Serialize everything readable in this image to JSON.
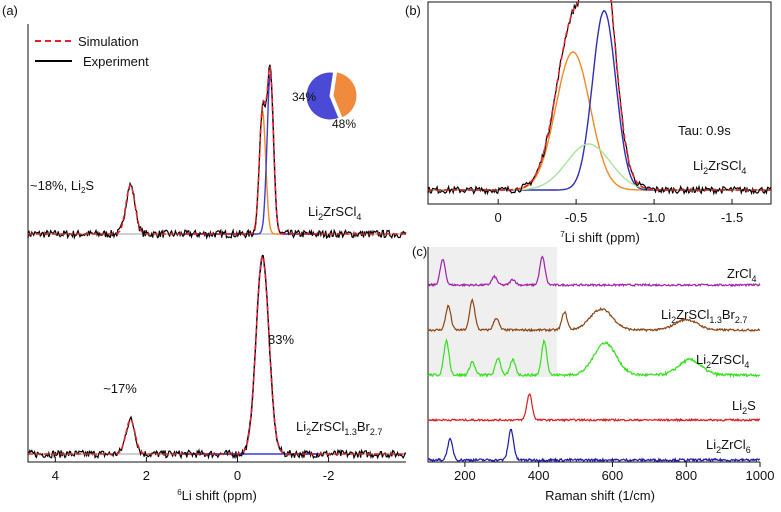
{
  "chart_data": [
    {
      "id": "a",
      "type": "line",
      "panel_label": "(a)",
      "xlabel_main": "Li shift (ppm)",
      "xlabel_sup": "6",
      "xlim": [
        4.6,
        -3.7
      ],
      "xticks": [
        4,
        2,
        0,
        -2
      ],
      "xtick_labels": [
        "4",
        "2",
        "0",
        "-2"
      ],
      "legend": [
        {
          "label": "Simulation",
          "color": "#e8222b",
          "dash": true
        },
        {
          "label": "Experiment",
          "color": "#000000",
          "dash": false
        }
      ],
      "series_colors": {
        "simulation": "#e8222b",
        "experiment": "#000000",
        "fit_blue": "#3b3bd8",
        "fit_orange": "#f08a24",
        "fit_green": "#8fd47a"
      },
      "samples": [
        {
          "name_parts": [
            [
              "Li",
              ""
            ],
            [
              "2",
              "sub"
            ],
            [
              "ZrSCl",
              ""
            ],
            [
              "4",
              "sub"
            ]
          ],
          "peak_annotation": "~18%, Li",
          "peak_annotation_sub": "2",
          "peak_annotation_tail": "S",
          "components": [
            {
              "name": "Li2S",
              "center_ppm": 2.35,
              "height": 0.22,
              "color": "#3b3bd8"
            },
            {
              "name": "site 1",
              "center_ppm": -0.55,
              "height": 0.55,
              "color": "#f08a24"
            },
            {
              "name": "site 2",
              "center_ppm": -0.72,
              "height": 0.72,
              "color": "#3b3bd8"
            }
          ],
          "pie": {
            "slices": [
              {
                "label": "34%",
                "value": 34,
                "color": "#f08a3c"
              },
              {
                "label": "48%",
                "value": 48,
                "color": "#4a4ad6"
              }
            ]
          }
        },
        {
          "name_parts": [
            [
              "Li",
              ""
            ],
            [
              "2",
              "sub"
            ],
            [
              "ZrSCl",
              ""
            ],
            [
              "1.3",
              "sub"
            ],
            [
              "Br",
              ""
            ],
            [
              "2.7",
              "sub"
            ]
          ],
          "peak_annotation": "~17%",
          "main_annotation": "83%",
          "components": [
            {
              "name": "Li2S",
              "center_ppm": 2.35,
              "height": 0.16,
              "color": "#3b3bd8"
            },
            {
              "name": "main",
              "center_ppm": -0.55,
              "height": 0.92,
              "color": "#3b3bd8"
            }
          ]
        }
      ]
    },
    {
      "id": "b",
      "type": "line",
      "panel_label": "(b)",
      "xlabel_main": "Li shift (ppm)",
      "xlabel_sup": "7",
      "xlim": [
        0.45,
        -1.75
      ],
      "xticks": [
        0,
        -0.5,
        -1.0,
        -1.5
      ],
      "xtick_labels": [
        "0",
        "-0.5",
        "-1.0",
        "-1.5"
      ],
      "annotation": "Tau: 0.9s",
      "sample_parts": [
        [
          "Li",
          ""
        ],
        [
          "2",
          "sub"
        ],
        [
          "ZrSCl",
          ""
        ],
        [
          "4",
          "sub"
        ]
      ],
      "components": [
        {
          "name": "orange",
          "center_ppm": -0.48,
          "height": 0.6,
          "width": 0.11,
          "color": "#f08a24"
        },
        {
          "name": "blue",
          "center_ppm": -0.68,
          "height": 0.78,
          "width": 0.075,
          "color": "#2e2eb8"
        },
        {
          "name": "green",
          "center_ppm": -0.58,
          "height": 0.2,
          "width": 0.14,
          "color": "#a8e49a"
        }
      ]
    },
    {
      "id": "c",
      "type": "line",
      "panel_label": "(c)",
      "xlabel": "Raman shift (1/cm)",
      "xlim": [
        100,
        1000
      ],
      "xticks": [
        200,
        400,
        600,
        800,
        1000
      ],
      "xtick_labels": [
        "200",
        "400",
        "600",
        "800",
        "1000"
      ],
      "shaded_region": [
        100,
        450
      ],
      "series": [
        {
          "name_parts": [
            [
              "ZrCl",
              ""
            ],
            [
              "4",
              "sub"
            ]
          ],
          "color": "#a020a8",
          "peaks": [
            [
              140,
              0.9
            ],
            [
              280,
              0.3
            ],
            [
              330,
              0.2
            ],
            [
              410,
              1.0
            ]
          ]
        },
        {
          "name_parts": [
            [
              "Li",
              ""
            ],
            [
              "2",
              "sub"
            ],
            [
              "ZrSCl",
              ""
            ],
            [
              "1.3",
              "sub"
            ],
            [
              "Br",
              ""
            ],
            [
              "2.7",
              "sub"
            ]
          ],
          "color": "#8b4513",
          "peaks": [
            [
              155,
              0.8
            ],
            [
              220,
              1.0
            ],
            [
              285,
              0.4
            ],
            [
              470,
              0.6
            ],
            [
              570,
              0.7
            ],
            [
              800,
              0.35
            ]
          ]
        },
        {
          "name_parts": [
            [
              "Li",
              ""
            ],
            [
              "2",
              "sub"
            ],
            [
              "ZrSCl",
              ""
            ],
            [
              "4",
              "sub"
            ]
          ],
          "color": "#33e01a",
          "peaks": [
            [
              150,
              0.9
            ],
            [
              220,
              0.35
            ],
            [
              290,
              0.45
            ],
            [
              330,
              0.4
            ],
            [
              415,
              0.9
            ],
            [
              580,
              0.85
            ],
            [
              810,
              0.4
            ]
          ]
        },
        {
          "name_parts": [
            [
              "Li",
              ""
            ],
            [
              "2",
              "sub"
            ],
            [
              "S",
              ""
            ]
          ],
          "color": "#d81a1a",
          "peaks": [
            [
              375,
              1.0
            ]
          ]
        },
        {
          "name_parts": [
            [
              "Li",
              ""
            ],
            [
              "2",
              "sub"
            ],
            [
              "ZrCl",
              ""
            ],
            [
              "6",
              "sub"
            ]
          ],
          "color": "#1a1aa8",
          "peaks": [
            [
              160,
              0.6
            ],
            [
              325,
              0.9
            ]
          ]
        }
      ]
    }
  ]
}
